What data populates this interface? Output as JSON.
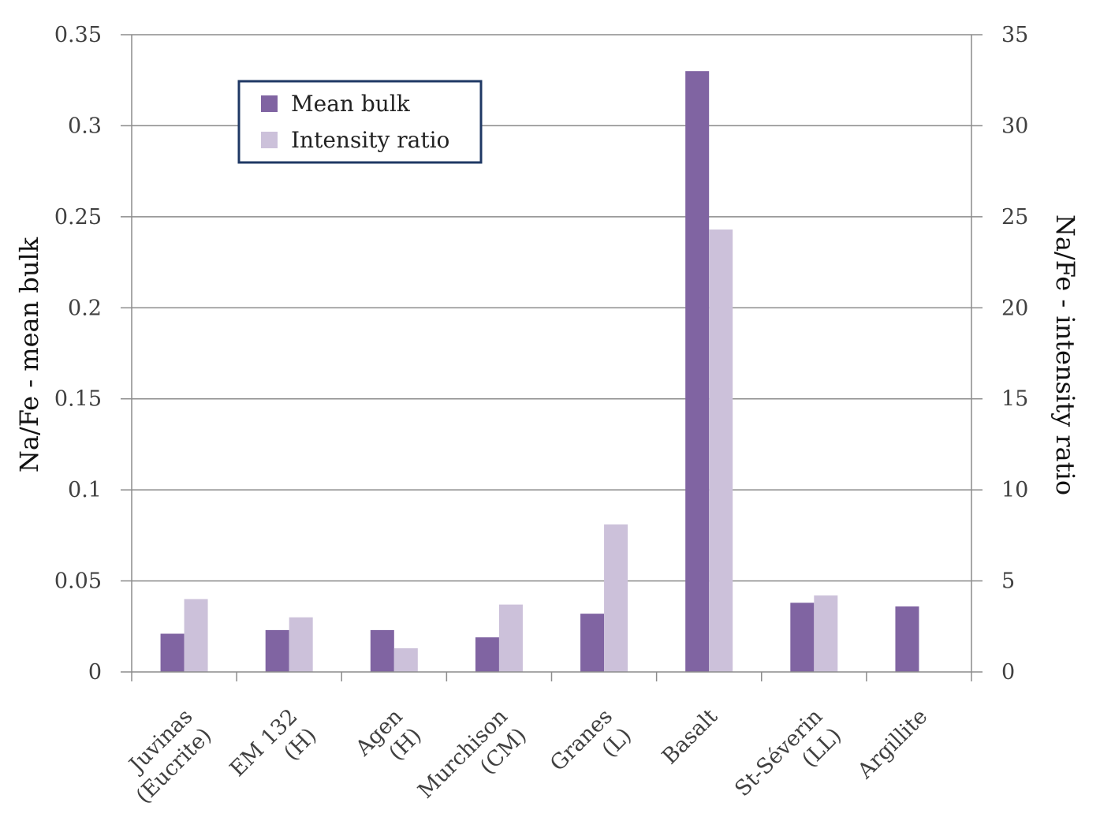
{
  "chart_data": {
    "type": "bar",
    "categories": [
      [
        "Juvinas",
        "(Eucrite)"
      ],
      [
        "EM 132",
        "(H)"
      ],
      [
        "Agen",
        "(H)"
      ],
      [
        "Murchison",
        "(CM)"
      ],
      [
        "Granes",
        "(L)"
      ],
      [
        "Basalt"
      ],
      [
        "St-Séverin",
        "(LL)"
      ],
      [
        "Argillite"
      ]
    ],
    "series": [
      {
        "name": "Mean bulk",
        "axis": "left",
        "color": "#8064a2",
        "values": [
          0.021,
          0.023,
          0.023,
          0.019,
          0.032,
          0.33,
          0.038,
          0.036
        ]
      },
      {
        "name": "Intensity ratio",
        "axis": "right",
        "color": "#ccc1da",
        "values": [
          4.0,
          3.0,
          1.3,
          3.7,
          8.1,
          24.3,
          4.2,
          null
        ]
      }
    ],
    "ylabel_left": "Na/Fe - mean bulk",
    "ylabel_right": "Na/Fe - intensity ratio",
    "ylim_left": [
      0,
      0.35
    ],
    "ylim_right": [
      0,
      35
    ],
    "yticks_left": [
      "0",
      "0.05",
      "0.1",
      "0.15",
      "0.2",
      "0.25",
      "0.3",
      "0.35"
    ],
    "yticks_right": [
      "0",
      "5",
      "10",
      "15",
      "20",
      "25",
      "30",
      "35"
    ],
    "grid": true,
    "legend_position": "top-left"
  }
}
